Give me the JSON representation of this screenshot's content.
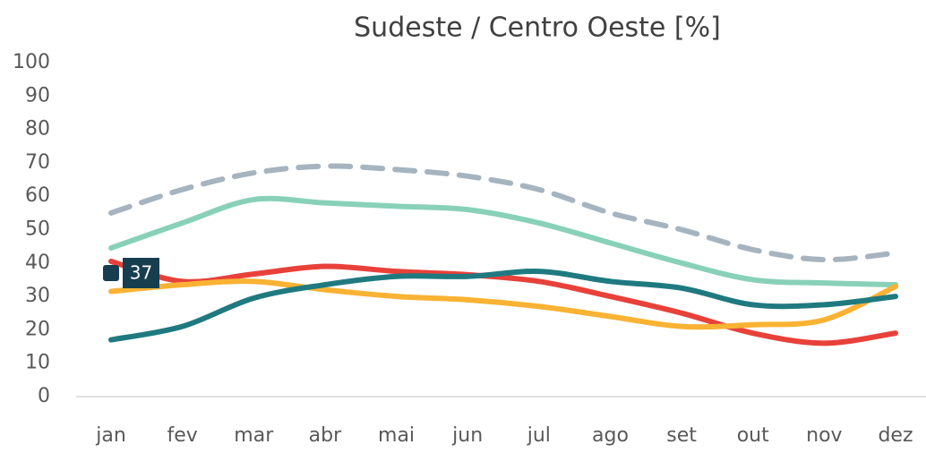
{
  "chart_data": {
    "type": "line",
    "title": "Sudeste / Centro Oeste [%]",
    "categories": [
      "jan",
      "fev",
      "mar",
      "abr",
      "mai",
      "jun",
      "jul",
      "ago",
      "set",
      "out",
      "nov",
      "dez"
    ],
    "ylim": [
      0,
      100
    ],
    "yticks": [
      0,
      10,
      20,
      30,
      40,
      50,
      60,
      70,
      80,
      90,
      100
    ],
    "series": [
      {
        "color": "#a5b4bf",
        "dashed": true,
        "values": [
          55,
          62,
          67,
          69,
          68,
          66,
          62,
          55,
          50,
          44,
          41,
          43
        ]
      },
      {
        "color": "#88d1b8",
        "values": [
          44.5,
          52,
          59,
          58,
          57,
          56,
          52,
          46,
          40,
          35,
          34,
          33.5
        ]
      },
      {
        "color": "#e8413a",
        "values": [
          40.5,
          34.5,
          36.7,
          39,
          37.5,
          36.5,
          34.5,
          30,
          25,
          19,
          16,
          19
        ]
      },
      {
        "color": "#f9b233",
        "values": [
          31.5,
          33.5,
          34.5,
          32,
          30,
          29,
          27,
          24,
          21,
          21.5,
          23,
          33
        ]
      },
      {
        "color": "#1f7a80",
        "values": [
          17,
          21,
          29.5,
          33.5,
          36,
          36,
          37.5,
          34.5,
          32.5,
          27.5,
          27.5,
          30
        ]
      },
      {
        "color": "#173e4f",
        "values": [
          37,
          null,
          null,
          null,
          null,
          null,
          null,
          null,
          null,
          null,
          null,
          null
        ],
        "data_labels": true
      }
    ]
  }
}
